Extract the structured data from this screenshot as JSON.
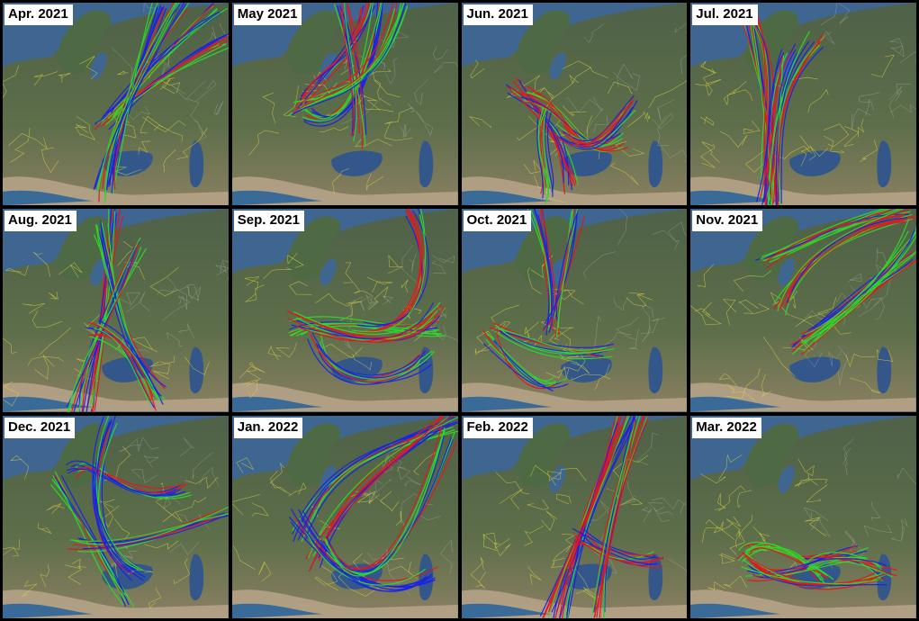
{
  "panels": [
    {
      "label": "Apr. 2021",
      "pattern": "ne-sweep"
    },
    {
      "label": "May 2021",
      "pattern": "north-loop"
    },
    {
      "label": "Jun. 2021",
      "pattern": "south-swirl"
    },
    {
      "label": "Jul. 2021",
      "pattern": "north-south-column"
    },
    {
      "label": "Aug. 2021",
      "pattern": "central-column"
    },
    {
      "label": "Sep. 2021",
      "pattern": "east-loop"
    },
    {
      "label": "Oct. 2021",
      "pattern": "north-fan"
    },
    {
      "label": "Nov. 2021",
      "pattern": "ne-diagonals"
    },
    {
      "label": "Dec. 2021",
      "pattern": "west-tangle"
    },
    {
      "label": "Jan. 2022",
      "pattern": "ne-arc"
    },
    {
      "label": "Feb. 2022",
      "pattern": "north-column"
    },
    {
      "label": "Mar. 2022",
      "pattern": "south-band"
    }
  ],
  "colors": {
    "trajectory_red": "#e8141e",
    "trajectory_green": "#2bd92b",
    "trajectory_blue": "#1a22e6",
    "borders": "#e6dc3c",
    "sea": "#3e6690",
    "land": "#5d6e4a",
    "land_dry": "#b7a48a"
  }
}
